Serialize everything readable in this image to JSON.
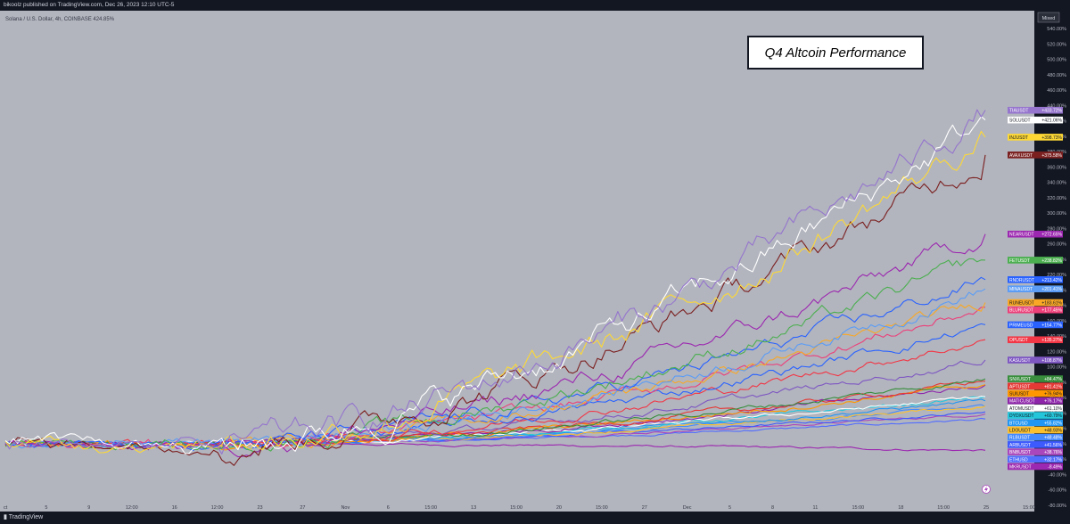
{
  "header": {
    "published": "bikoolz published on TradingView.com, Dec 26, 2023 12:10 UTC-5",
    "symbol_info": "Solana / U.S. Dollar, 4h, COINBASE 424.85%",
    "scale_mode": "Mixed"
  },
  "footer": {
    "brand": "TradingView"
  },
  "colors": {
    "background": "#b2b5be",
    "panel": "#131722",
    "axis_text": "#d1d4dc"
  },
  "chart_data": {
    "type": "line",
    "title": "Q4 Altcoin Performance",
    "ylim": [
      -80,
      540
    ],
    "y_unit": "%",
    "y_ticks": [
      "540.00%",
      "520.00%",
      "500.00%",
      "480.00%",
      "460.00%",
      "440.00%",
      "420.00%",
      "400.00%",
      "380.00%",
      "360.00%",
      "340.00%",
      "320.00%",
      "300.00%",
      "280.00%",
      "260.00%",
      "240.00%",
      "220.00%",
      "200.00%",
      "180.00%",
      "160.00%",
      "140.00%",
      "120.00%",
      "100.00%",
      "80.00%",
      "60.00%",
      "40.00%",
      "20.00%",
      "0.00%",
      "-20.00%",
      "-40.00%",
      "-60.00%",
      "-80.00%"
    ],
    "x_ticks": [
      "ct",
      "5",
      "9",
      "12:00",
      "16",
      "12:00",
      "23",
      "27",
      "Nov",
      "6",
      "15:00",
      "13",
      "15:00",
      "20",
      "15:00",
      "27",
      "Dec",
      "5",
      "8",
      "11",
      "15:00",
      "18",
      "15:00",
      "25",
      "15:00"
    ],
    "grid": false,
    "legend": "right axis labels",
    "series": [
      {
        "name": "TIAUSDT",
        "label": "+433.72%",
        "final": 433.72,
        "color": "#9575cd"
      },
      {
        "name": "SOLUSDT",
        "label": "+421.06%",
        "final": 421.06,
        "color": "#ffffff"
      },
      {
        "name": "INJUSDT",
        "label": "+398.73%",
        "final": 398.73,
        "color": "#fdd835"
      },
      {
        "name": "AVAXUSDT",
        "label": "+375.58%",
        "final": 375.58,
        "color": "#7b1f1f"
      },
      {
        "name": "NEARUSDT",
        "label": "+272.65%",
        "final": 272.65,
        "color": "#9c27b0"
      },
      {
        "name": "FETUSDT",
        "label": "+238.82%",
        "final": 238.82,
        "color": "#4caf50"
      },
      {
        "name": "RNDRUSDT",
        "label": "+213.42%",
        "final": 213.42,
        "color": "#2962ff"
      },
      {
        "name": "MINAUSDT",
        "label": "+201.41%",
        "final": 201.41,
        "color": "#5b9cf6"
      },
      {
        "name": "RUNEUSDT",
        "label": "+183.61%",
        "final": 183.61,
        "color": "#f9a825"
      },
      {
        "name": "BLURUSDT",
        "label": "+177.45%",
        "final": 177.45,
        "color": "#ec407a"
      },
      {
        "name": "PRIMEUSD",
        "label": "+154.77%",
        "final": 154.77,
        "color": "#2962ff"
      },
      {
        "name": "OPUSDT",
        "label": "+135.27%",
        "final": 135.27,
        "color": "#f23645"
      },
      {
        "name": "KASUSDT",
        "label": "+108.87%",
        "final": 108.87,
        "color": "#7e57c2"
      },
      {
        "name": "SNXUSDT",
        "label": "+84.47%",
        "final": 84.47,
        "color": "#388e3c"
      },
      {
        "name": "APTUSDT",
        "label": "+81.41%",
        "final": 81.41,
        "color": "#e53935"
      },
      {
        "name": "SUIUSDT",
        "label": "+76.94%",
        "final": 76.94,
        "color": "#ff9800"
      },
      {
        "name": "MATICUSDT",
        "label": "+76.17%",
        "final": 76.17,
        "color": "#8e24aa"
      },
      {
        "name": "ATOMUSDT",
        "label": "+61.10%",
        "final": 61.1,
        "color": "#ffffff"
      },
      {
        "name": "DYDXUSDT",
        "label": "+60.79%",
        "final": 60.79,
        "color": "#26c6da"
      },
      {
        "name": "BTCUSD",
        "label": "+55.82%",
        "final": 55.82,
        "color": "#2196f3"
      },
      {
        "name": "LDOUSDT",
        "label": "+48.93%",
        "final": 48.93,
        "color": "#fbc02d"
      },
      {
        "name": "RLBUSDT",
        "label": "+48.48%",
        "final": 48.48,
        "color": "#448aff"
      },
      {
        "name": "ARBUSDT",
        "label": "+41.56%",
        "final": 41.56,
        "color": "#3d5afe"
      },
      {
        "name": "BNBUSDT",
        "label": "+38.76%",
        "final": 38.76,
        "color": "#ab47bc"
      },
      {
        "name": "ETHUSD",
        "label": "+32.17%",
        "final": 32.17,
        "color": "#536dfe"
      },
      {
        "name": "MKRUSDT",
        "label": "-8.49%",
        "final": -8.49,
        "color": "#9c27b0"
      }
    ]
  }
}
